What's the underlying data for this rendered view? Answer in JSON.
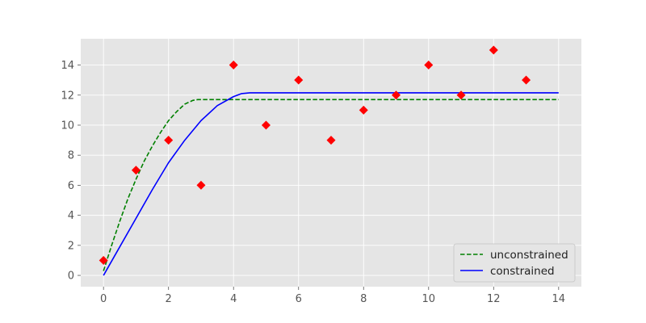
{
  "chart_data": {
    "type": "line",
    "title": "",
    "xlabel": "",
    "ylabel": "",
    "xlim": [
      -0.7,
      14.7
    ],
    "ylim": [
      -0.75,
      15.75
    ],
    "xticks": [
      0,
      2,
      4,
      6,
      8,
      10,
      12,
      14
    ],
    "yticks": [
      0,
      2,
      4,
      6,
      8,
      10,
      12,
      14
    ],
    "grid": true,
    "legend_position": "lower-right",
    "colors": {
      "plot_background": "#e5e5e5",
      "grid": "#ffffff",
      "scatter": "#ff0000",
      "unconstrained": "#008000",
      "constrained": "#0000ff"
    },
    "scatter": {
      "marker": "diamond",
      "x": [
        0,
        1,
        2,
        3,
        4,
        5,
        6,
        7,
        8,
        9,
        10,
        11,
        12,
        13
      ],
      "y": [
        1,
        7,
        9,
        6,
        14,
        10,
        13,
        9,
        11,
        12,
        14,
        12,
        15,
        13
      ]
    },
    "series": [
      {
        "name": "unconstrained",
        "style": "dashed",
        "x": [
          0,
          0.25,
          0.5,
          0.75,
          1,
          1.25,
          1.5,
          1.75,
          2,
          2.25,
          2.5,
          2.75,
          2.9,
          3.2,
          4,
          6,
          8,
          10,
          12,
          14
        ],
        "y": [
          0.3,
          2.0,
          3.6,
          5.1,
          6.4,
          7.6,
          8.6,
          9.5,
          10.3,
          10.9,
          11.4,
          11.65,
          11.7,
          11.7,
          11.7,
          11.7,
          11.7,
          11.7,
          11.7,
          11.7
        ]
      },
      {
        "name": "constrained",
        "style": "solid",
        "x": [
          0,
          0.5,
          1,
          1.5,
          2,
          2.5,
          3,
          3.5,
          4,
          4.25,
          4.5,
          4.75,
          5,
          6,
          8,
          10,
          12,
          14
        ],
        "y": [
          0,
          1.9,
          3.8,
          5.7,
          7.5,
          9.0,
          10.3,
          11.3,
          11.9,
          12.1,
          12.15,
          12.15,
          12.15,
          12.15,
          12.15,
          12.15,
          12.15,
          12.15
        ]
      }
    ]
  }
}
